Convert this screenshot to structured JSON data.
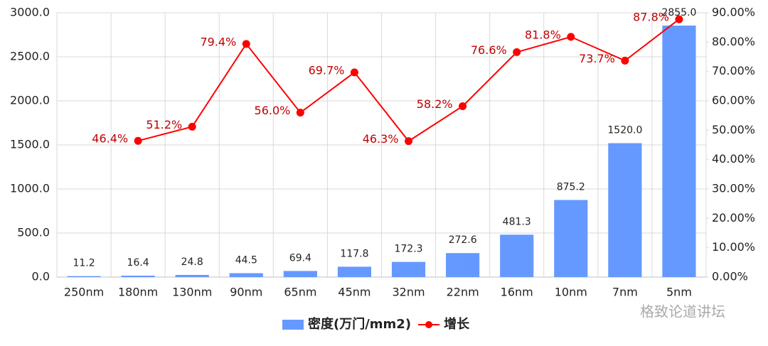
{
  "chart_data": {
    "type": "bar-line",
    "categories": [
      "250nm",
      "180nm",
      "130nm",
      "90nm",
      "65nm",
      "45nm",
      "32nm",
      "22nm",
      "16nm",
      "10nm",
      "7nm",
      "5nm"
    ],
    "series": [
      {
        "name": "密度(万门/mm2)",
        "type": "bar",
        "color": "#6699ff",
        "values": [
          11.2,
          16.4,
          24.8,
          44.5,
          69.4,
          117.8,
          172.3,
          272.6,
          481.3,
          875.2,
          1520,
          2855
        ],
        "value_labels": [
          "11.2",
          "16.4",
          "24.8",
          "44.5",
          "69.4",
          "117.8",
          "172.3",
          "272.6",
          "481.3",
          "875.2",
          "1520.0",
          "2855.0"
        ]
      },
      {
        "name": "增长",
        "type": "line",
        "axis": "y2",
        "color": "#ff0000",
        "label_color": "#c00000",
        "values": [
          null,
          46.4,
          51.2,
          79.4,
          56.0,
          69.7,
          46.3,
          58.2,
          76.6,
          81.8,
          73.7,
          87.8
        ],
        "value_labels": [
          null,
          "46.4%",
          "51.2%",
          "79.4%",
          "56.0%",
          "69.7%",
          "46.3%",
          "58.2%",
          "76.6%",
          "81.8%",
          "73.7%",
          "87.8%"
        ]
      }
    ],
    "ylim": [
      0,
      3000
    ],
    "yticks": [
      {
        "value": 0,
        "label": "0.0"
      },
      {
        "value": 500,
        "label": "500.0"
      },
      {
        "value": 1000,
        "label": "1000.0"
      },
      {
        "value": 1500,
        "label": "1500.0"
      },
      {
        "value": 2000,
        "label": "2000.0"
      },
      {
        "value": 2500,
        "label": "2500.0"
      },
      {
        "value": 3000,
        "label": "3000.0"
      }
    ],
    "y2lim": [
      0,
      90
    ],
    "y2ticks": [
      {
        "value": 0,
        "label": "0.00%"
      },
      {
        "value": 10,
        "label": "10.00%"
      },
      {
        "value": 20,
        "label": "20.00%"
      },
      {
        "value": 30,
        "label": "30.00%"
      },
      {
        "value": 40,
        "label": "40.00%"
      },
      {
        "value": 50,
        "label": "50.00%"
      },
      {
        "value": 60,
        "label": "60.00%"
      },
      {
        "value": 70,
        "label": "70.00%"
      },
      {
        "value": 80,
        "label": "80.00%"
      },
      {
        "value": 90,
        "label": "90.00%"
      }
    ],
    "grid": true,
    "legend": "bottom",
    "watermark": "格致论道讲坛"
  }
}
